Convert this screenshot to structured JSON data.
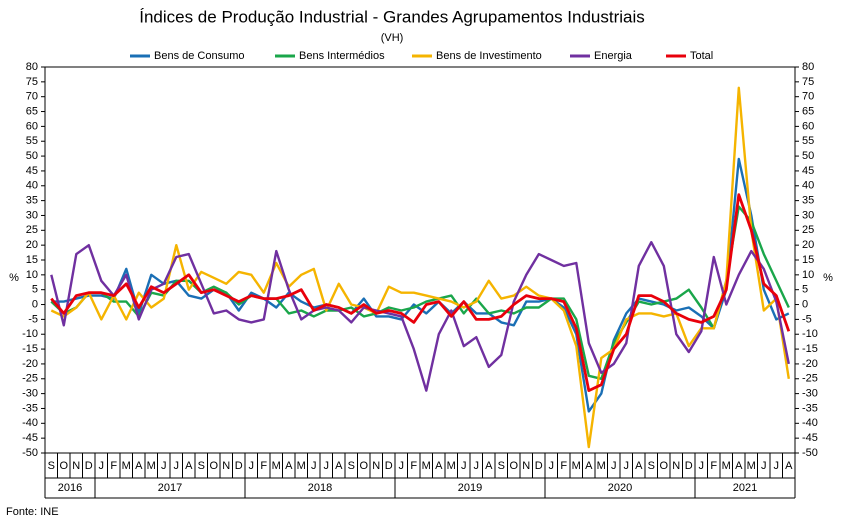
{
  "chart_data": {
    "type": "line",
    "title": "Índices de Produção Industrial - Grandes Agrupamentos Industriais",
    "subtitle": "(VH)",
    "y_label": "%",
    "y2_label": "%",
    "source": "Fonte: INE",
    "groups": [
      {
        "label": "2016",
        "categories": [
          "S",
          "O",
          "N",
          "D"
        ]
      },
      {
        "label": "2017",
        "categories": [
          "J",
          "F",
          "M",
          "A",
          "M",
          "J",
          "J",
          "A",
          "S",
          "O",
          "N",
          "D"
        ]
      },
      {
        "label": "2018",
        "categories": [
          "J",
          "F",
          "M",
          "A",
          "M",
          "J",
          "J",
          "A",
          "S",
          "O",
          "N",
          "D"
        ]
      },
      {
        "label": "2019",
        "categories": [
          "J",
          "F",
          "M",
          "A",
          "M",
          "J",
          "J",
          "A",
          "S",
          "O",
          "N",
          "D"
        ]
      },
      {
        "label": "2020",
        "categories": [
          "J",
          "F",
          "M",
          "A",
          "M",
          "J",
          "J",
          "A",
          "S",
          "O",
          "N",
          "D"
        ]
      },
      {
        "label": "2021",
        "categories": [
          "J",
          "F",
          "M",
          "A",
          "M",
          "J",
          "J",
          "A"
        ]
      }
    ],
    "ylim": [
      -50,
      80
    ],
    "yticks": [
      -50,
      -45,
      -40,
      -35,
      -30,
      -25,
      -20,
      -15,
      -10,
      -5,
      0,
      5,
      10,
      15,
      20,
      25,
      30,
      35,
      40,
      45,
      50,
      55,
      60,
      65,
      70,
      75,
      80
    ],
    "y2lim": [
      -50,
      80
    ],
    "y2ticks": [
      -50,
      -45,
      -40,
      -35,
      -30,
      -25,
      -20,
      -15,
      -10,
      -5,
      0,
      5,
      10,
      15,
      20,
      25,
      30,
      35,
      40,
      45,
      50,
      55,
      60,
      65,
      70,
      75,
      80
    ],
    "legend": "top",
    "series": [
      {
        "name": "Bens de Consumo",
        "color": "#1a6fb5",
        "values": [
          1,
          1,
          2,
          3,
          3,
          2,
          12,
          -3,
          10,
          7,
          8,
          3,
          2,
          5,
          4,
          -2,
          4,
          2,
          -1,
          4,
          1,
          -1,
          0,
          -1,
          -3,
          2,
          -4,
          -4,
          -5,
          0,
          -3,
          1,
          -3,
          1,
          -3,
          -3,
          -6,
          -7,
          1,
          1,
          2,
          -1,
          -10,
          -36,
          -30,
          -12,
          -3,
          2,
          1,
          0,
          -2,
          -1,
          -4,
          -8,
          5,
          49,
          30,
          5,
          -5,
          -3
        ]
      },
      {
        "name": "Bens Intermédios",
        "color": "#1aa64a",
        "values": [
          1,
          -3,
          -1,
          4,
          4,
          1,
          1,
          -4,
          4,
          3,
          8,
          8,
          4,
          6,
          4,
          0,
          3,
          2,
          2,
          -3,
          -2,
          -4,
          -2,
          -2,
          -1,
          -4,
          -3,
          -1,
          -2,
          -1,
          1,
          2,
          3,
          -3,
          2,
          -3,
          -2,
          -3,
          -1,
          -1,
          2,
          2,
          -5,
          -24,
          -25,
          -13,
          -6,
          1,
          0,
          1,
          2,
          5,
          -1,
          -8,
          8,
          33,
          28,
          17,
          8,
          -1
        ]
      },
      {
        "name": "Bens de Investimento",
        "color": "#f5b400",
        "values": [
          -2,
          -4,
          -1,
          4,
          -5,
          3,
          -5,
          4,
          -1,
          2,
          20,
          5,
          11,
          9,
          7,
          11,
          10,
          4,
          14,
          6,
          10,
          12,
          -2,
          7,
          0,
          -1,
          -3,
          6,
          4,
          4,
          3,
          2,
          1,
          -1,
          1,
          8,
          2,
          3,
          6,
          3,
          2,
          -2,
          -14,
          -48,
          -18,
          -15,
          -5,
          -3,
          -3,
          -4,
          -3,
          -14,
          -8,
          -8,
          8,
          73,
          25,
          -2,
          2,
          -25
        ]
      },
      {
        "name": "Energia",
        "color": "#7030a0",
        "values": [
          10,
          -7,
          17,
          20,
          8,
          3,
          10,
          -5,
          5,
          7,
          16,
          17,
          7,
          -3,
          -2,
          -5,
          -6,
          -5,
          18,
          5,
          -5,
          -2,
          -1,
          -2,
          -6,
          -1,
          -2,
          -3,
          -4,
          -15,
          -29,
          -10,
          -2,
          -14,
          -11,
          -21,
          -17,
          1,
          10,
          17,
          15,
          13,
          14,
          -13,
          -23,
          -20,
          -13,
          13,
          21,
          13,
          -10,
          -16,
          -9,
          16,
          0,
          10,
          18,
          12,
          1,
          -20
        ]
      },
      {
        "name": "Total",
        "color": "#e8000b",
        "values": [
          2,
          -3,
          3,
          4,
          4,
          3,
          7,
          -1,
          6,
          4,
          7,
          10,
          4,
          5,
          3,
          1,
          3,
          2,
          2,
          3,
          5,
          -2,
          0,
          -1,
          -3,
          0,
          -3,
          -2,
          -3,
          -6,
          0,
          1,
          -4,
          1,
          -5,
          -5,
          -4,
          0,
          3,
          2,
          2,
          1,
          -8,
          -29,
          -27,
          -15,
          -10,
          3,
          3,
          1,
          -3,
          -5,
          -6,
          -4,
          5,
          37,
          25,
          7,
          3,
          -9
        ]
      }
    ]
  }
}
